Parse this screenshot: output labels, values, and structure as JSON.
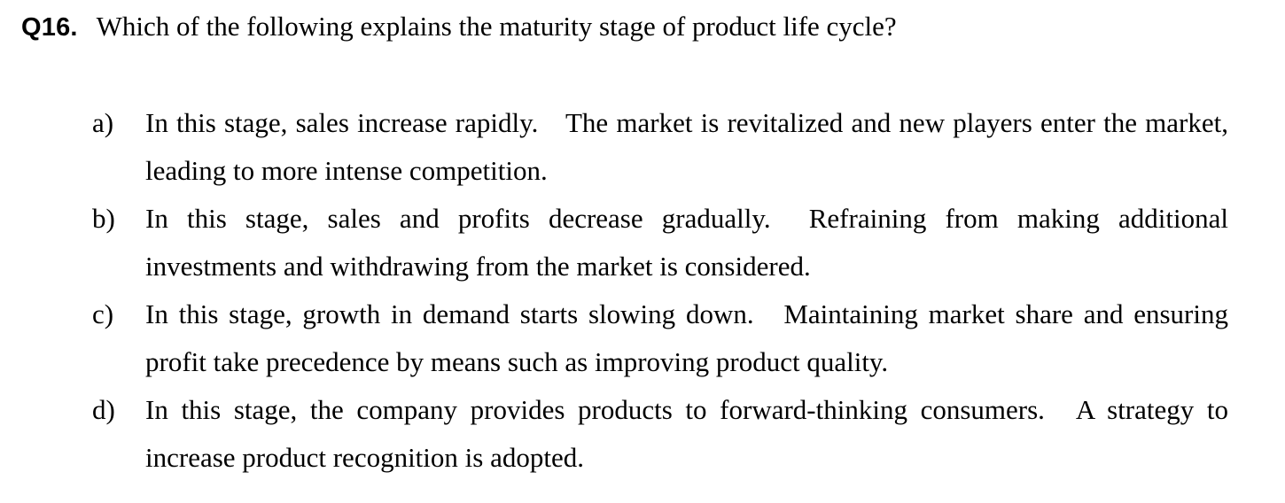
{
  "question": {
    "number": "Q16.",
    "text": "Which of the following explains the maturity stage of product life cycle?"
  },
  "options": [
    {
      "letter": "a)",
      "sentence1": "In this stage, sales increase rapidly.",
      "sentence2": "The market is revitalized and new players enter the market, leading to more intense competition."
    },
    {
      "letter": "b)",
      "sentence1": "In this stage, sales and profits decrease gradually.",
      "sentence2": "Refraining from making additional investments and withdrawing from the market is considered."
    },
    {
      "letter": "c)",
      "sentence1": "In this stage, growth in demand starts slowing down.",
      "sentence2": "Maintaining market share and ensuring profit take precedence by means such as improving product quality."
    },
    {
      "letter": "d)",
      "sentence1": "In this stage, the company provides products to forward-thinking consumers.",
      "sentence2": "A strategy to increase product recognition is adopted."
    }
  ]
}
